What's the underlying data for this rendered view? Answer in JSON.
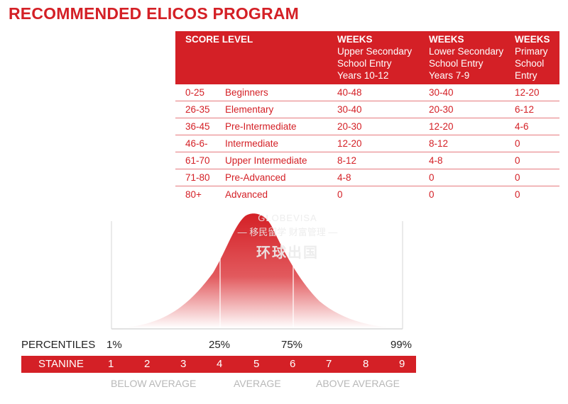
{
  "title": "RECOMMENDED ELICOS PROGRAM",
  "table": {
    "header": {
      "score_level": "SCORE LEVEL",
      "col1": {
        "label": "WEEKS",
        "lines": [
          "Upper Secondary",
          "School Entry",
          "Years 10-12"
        ]
      },
      "col2": {
        "label": "WEEKS",
        "lines": [
          "Lower Secondary",
          "School Entry",
          "Years 7-9"
        ]
      },
      "col3": {
        "label": "WEEKS",
        "lines": [
          "Primary",
          "School",
          "Entry"
        ]
      }
    },
    "rows": [
      {
        "score": "0-25",
        "level": "Beginners",
        "upper": "40-48",
        "lower": "30-40",
        "primary": "12-20"
      },
      {
        "score": "26-35",
        "level": "Elementary",
        "upper": "30-40",
        "lower": "20-30",
        "primary": "6-12"
      },
      {
        "score": "36-45",
        "level": "Pre-Intermediate",
        "upper": "20-30",
        "lower": "12-20",
        "primary": "4-6"
      },
      {
        "score": "46-6-",
        "level": "Intermediate",
        "upper": "12-20",
        "lower": "8-12",
        "primary": "0"
      },
      {
        "score": "61-70",
        "level": "Upper Intermediate",
        "upper": "8-12",
        "lower": "4-8",
        "primary": "0"
      },
      {
        "score": "71-80",
        "level": "Pre-Advanced",
        "upper": "4-8",
        "lower": "0",
        "primary": "0"
      },
      {
        "score": "80+",
        "level": "Advanced",
        "upper": "0",
        "lower": "0",
        "primary": "0"
      }
    ]
  },
  "watermark": {
    "en": "GLOBEVISA",
    "cn_line1": "— 移民留学 财富管理 —",
    "cn_line2": "环球出国"
  },
  "percentiles": {
    "label": "PERCENTILES",
    "values": [
      "1%",
      "25%",
      "75%",
      "99%"
    ]
  },
  "stanine": {
    "label": "STANINE",
    "values": [
      "1",
      "2",
      "3",
      "4",
      "5",
      "6",
      "7",
      "8",
      "9"
    ]
  },
  "bands": {
    "below": "BELOW AVERAGE",
    "average": "AVERAGE",
    "above": "ABOVE AVERAGE"
  },
  "colors": {
    "brand_red": "#d42026",
    "row_divider": "#e67a7e",
    "band_text": "#b8b8b8"
  }
}
